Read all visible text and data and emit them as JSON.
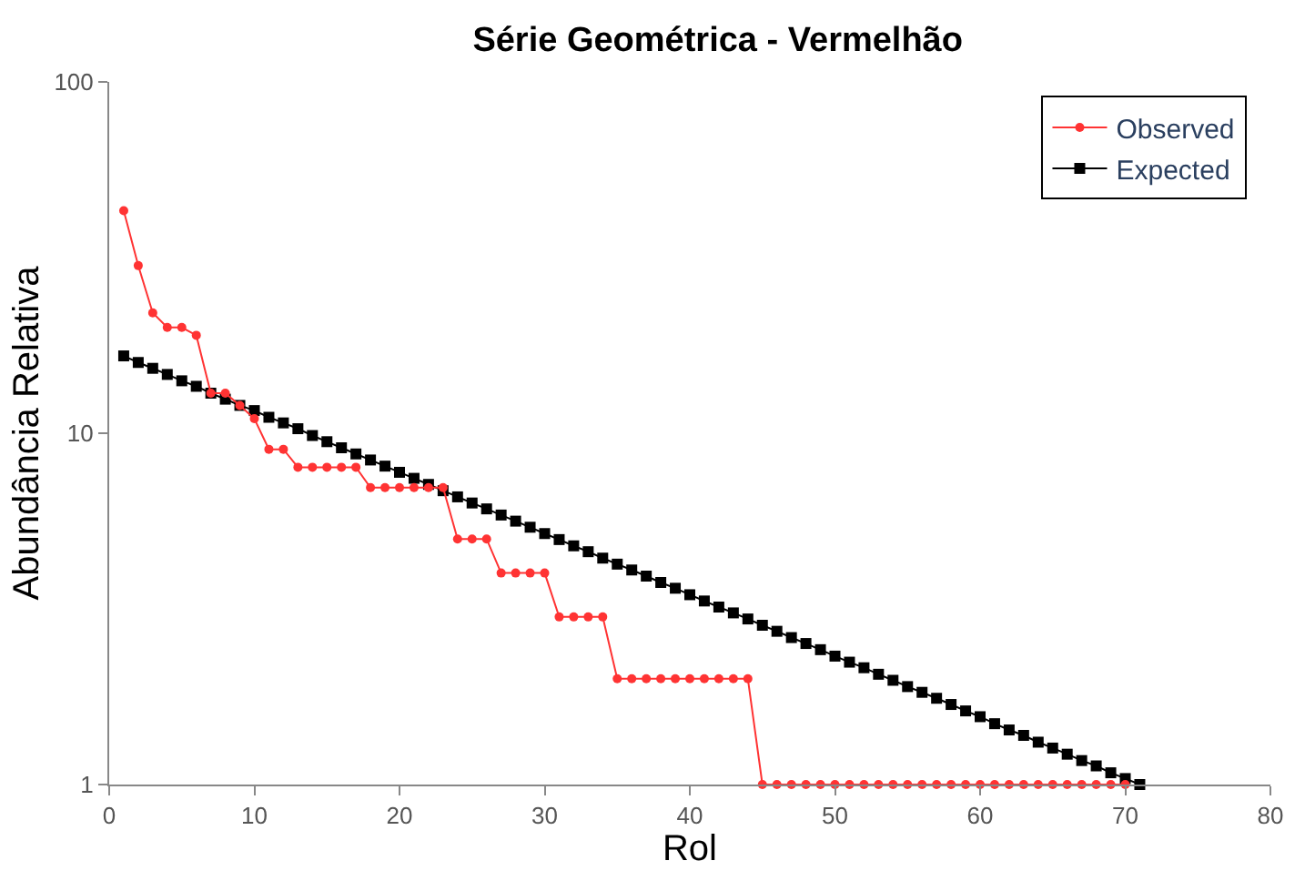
{
  "chart_data": {
    "type": "line",
    "title": "Série Geométrica - Vermelhão",
    "xlabel": "Rol",
    "ylabel": "Abundância Relativa",
    "xlim": [
      0,
      80
    ],
    "xticks": [
      0,
      10,
      20,
      30,
      40,
      50,
      60,
      70,
      80
    ],
    "ylim": [
      1,
      100
    ],
    "yticks": [
      1,
      10,
      100
    ],
    "log": "y",
    "legend": "top right",
    "series": [
      {
        "name": "Observed",
        "color": "#ff3333",
        "marker": "circle",
        "x": [
          1,
          2,
          3,
          4,
          5,
          6,
          7,
          8,
          9,
          10,
          11,
          12,
          13,
          14,
          15,
          16,
          17,
          18,
          19,
          20,
          21,
          22,
          23,
          24,
          25,
          26,
          27,
          28,
          29,
          30,
          31,
          32,
          33,
          34,
          35,
          36,
          37,
          38,
          39,
          40,
          41,
          42,
          43,
          44,
          45,
          46,
          47,
          48,
          49,
          50,
          51,
          52,
          53,
          54,
          55,
          56,
          57,
          58,
          59,
          60,
          61,
          62,
          63,
          64,
          65,
          66,
          67,
          68,
          69,
          70
        ],
        "values": [
          43,
          30,
          22,
          20,
          20,
          19,
          13,
          13,
          12,
          11,
          9,
          9,
          8,
          8,
          8,
          8,
          8,
          7,
          7,
          7,
          7,
          7,
          7,
          5,
          5,
          5,
          4,
          4,
          4,
          4,
          3,
          3,
          3,
          3,
          2,
          2,
          2,
          2,
          2,
          2,
          2,
          2,
          2,
          2,
          1,
          1,
          1,
          1,
          1,
          1,
          1,
          1,
          1,
          1,
          1,
          1,
          1,
          1,
          1,
          1,
          1,
          1,
          1,
          1,
          1,
          1,
          1,
          1,
          1,
          1
        ]
      },
      {
        "name": "Expected",
        "color": "#000000",
        "marker": "square",
        "line_style": "solid",
        "x": [
          1,
          2,
          3,
          4,
          5,
          6,
          7,
          8,
          9,
          10,
          11,
          12,
          13,
          14,
          15,
          16,
          17,
          18,
          19,
          20,
          21,
          22,
          23,
          24,
          25,
          26,
          27,
          28,
          29,
          30,
          31,
          32,
          33,
          34,
          35,
          36,
          37,
          38,
          39,
          40,
          41,
          42,
          43,
          44,
          45,
          46,
          47,
          48,
          49,
          50,
          51,
          52,
          53,
          54,
          55,
          56,
          57,
          58,
          59,
          60,
          61,
          62,
          63,
          64,
          65,
          66,
          67,
          68,
          69,
          70,
          71
        ],
        "values": [
          16.6,
          15.9,
          15.3,
          14.7,
          14.1,
          13.6,
          13.0,
          12.5,
          12.0,
          11.6,
          11.1,
          10.7,
          10.3,
          9.85,
          9.46,
          9.09,
          8.73,
          8.39,
          8.06,
          7.74,
          7.44,
          7.15,
          6.86,
          6.59,
          6.33,
          6.09,
          5.85,
          5.62,
          5.4,
          5.18,
          4.98,
          4.78,
          4.6,
          4.41,
          4.24,
          4.08,
          3.92,
          3.76,
          3.62,
          3.47,
          3.33,
          3.2,
          3.08,
          2.96,
          2.84,
          2.73,
          2.62,
          2.52,
          2.42,
          2.32,
          2.23,
          2.15,
          2.06,
          1.98,
          1.9,
          1.83,
          1.76,
          1.69,
          1.62,
          1.56,
          1.49,
          1.43,
          1.38,
          1.32,
          1.27,
          1.22,
          1.17,
          1.13,
          1.08,
          1.04,
          1.0
        ]
      }
    ]
  }
}
